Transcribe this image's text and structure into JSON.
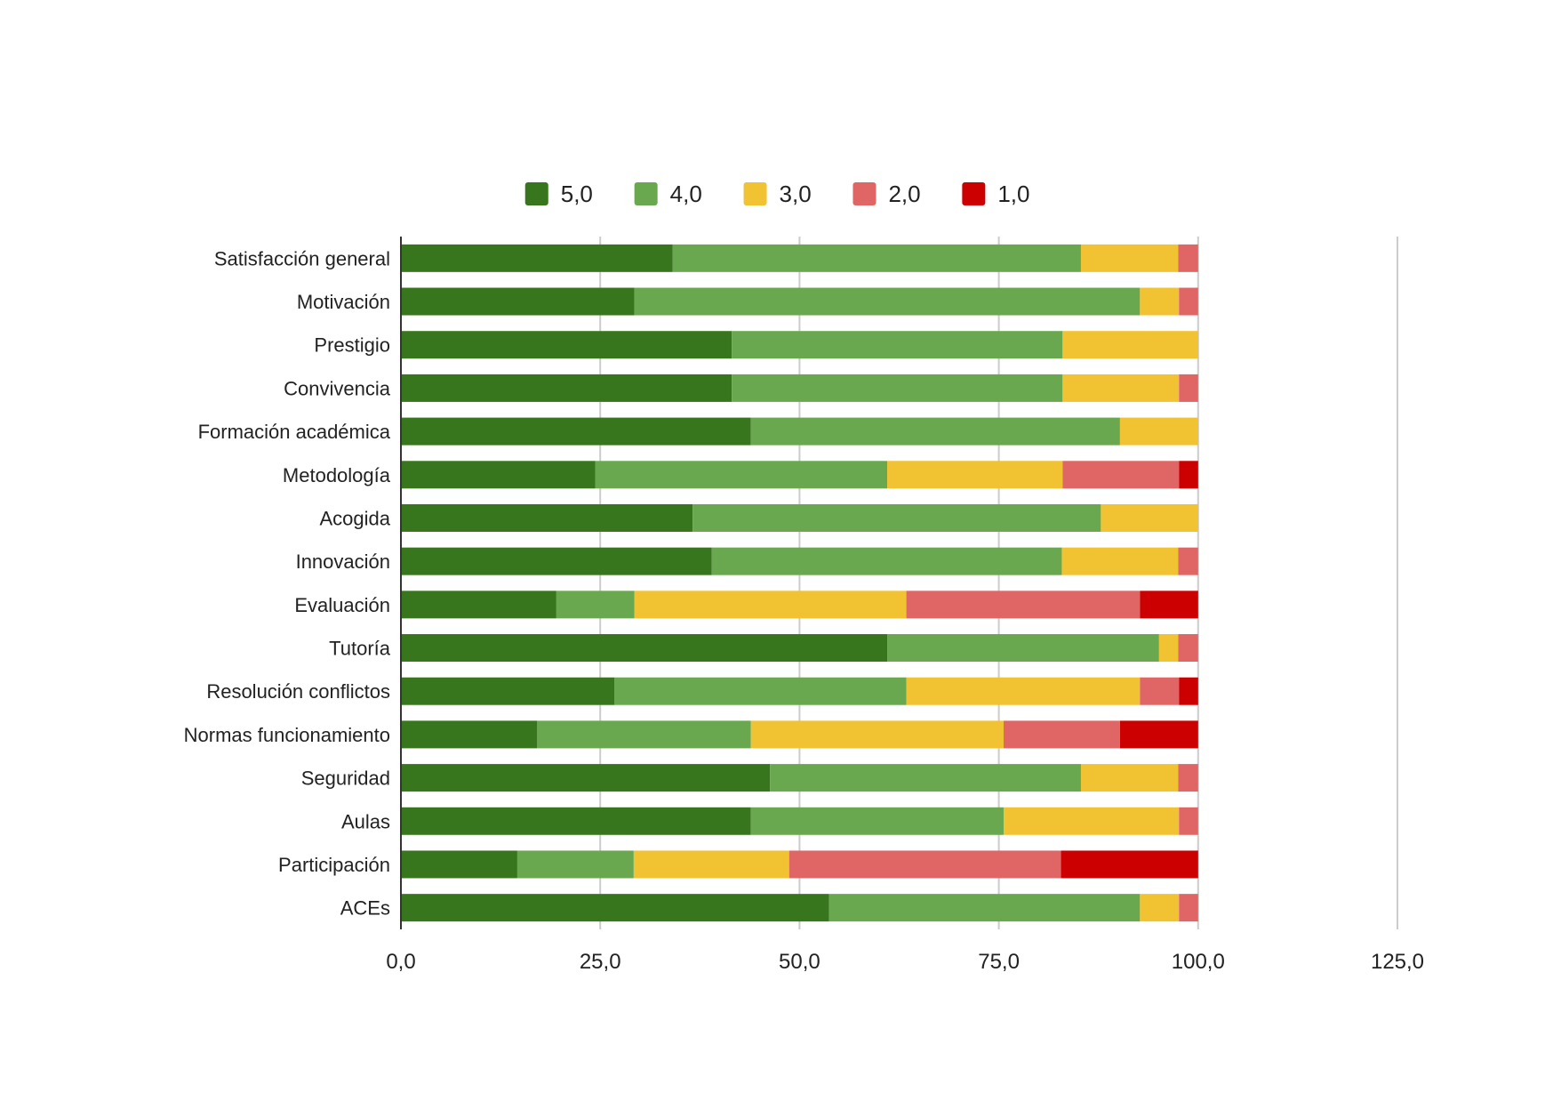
{
  "chart_data": {
    "type": "bar",
    "orientation": "horizontal",
    "stacked": true,
    "title": "",
    "xlabel": "",
    "ylabel": "",
    "xlim": [
      0,
      125
    ],
    "x_ticks": [
      0,
      25,
      50,
      75,
      100,
      125
    ],
    "x_tick_labels": [
      "0,0",
      "25,0",
      "50,0",
      "75,0",
      "100,0",
      "125,0"
    ],
    "grid": true,
    "legend_position": "top-center",
    "categories": [
      "Satisfacción general",
      "Motivación",
      "Prestigio",
      "Convivencia",
      "Formación académica",
      "Metodología",
      "Acogida",
      "Innovación",
      "Evaluación",
      "Tutoría",
      "Resolución conflictos",
      "Normas funcionamiento",
      "Seguridad",
      "Aulas",
      "Participación",
      "ACEs"
    ],
    "series": [
      {
        "name": "5,0",
        "color": "#38761d",
        "values": [
          34.1,
          29.3,
          41.5,
          41.5,
          43.9,
          24.4,
          36.6,
          39.0,
          19.5,
          61.0,
          26.8,
          17.1,
          46.3,
          43.9,
          14.6,
          53.7
        ]
      },
      {
        "name": "4,0",
        "color": "#6aa84f",
        "values": [
          51.2,
          63.4,
          41.5,
          41.5,
          46.3,
          36.6,
          51.2,
          43.9,
          9.8,
          34.1,
          36.6,
          26.8,
          39.0,
          31.7,
          14.6,
          39.0
        ]
      },
      {
        "name": "3,0",
        "color": "#f1c232",
        "values": [
          12.2,
          4.9,
          17.0,
          14.6,
          9.8,
          22.0,
          12.2,
          14.6,
          34.1,
          2.4,
          29.3,
          31.7,
          12.2,
          22.0,
          19.5,
          4.9
        ]
      },
      {
        "name": "2,0",
        "color": "#e06666",
        "values": [
          2.5,
          2.4,
          0,
          2.4,
          0,
          14.6,
          0,
          2.5,
          29.3,
          2.5,
          4.9,
          14.6,
          2.5,
          2.4,
          34.1,
          2.4
        ]
      },
      {
        "name": "1,0",
        "color": "#cc0000",
        "values": [
          0,
          0,
          0,
          0,
          0,
          2.4,
          0,
          0,
          7.3,
          0,
          2.4,
          9.8,
          0,
          0,
          17.2,
          0
        ]
      }
    ]
  }
}
